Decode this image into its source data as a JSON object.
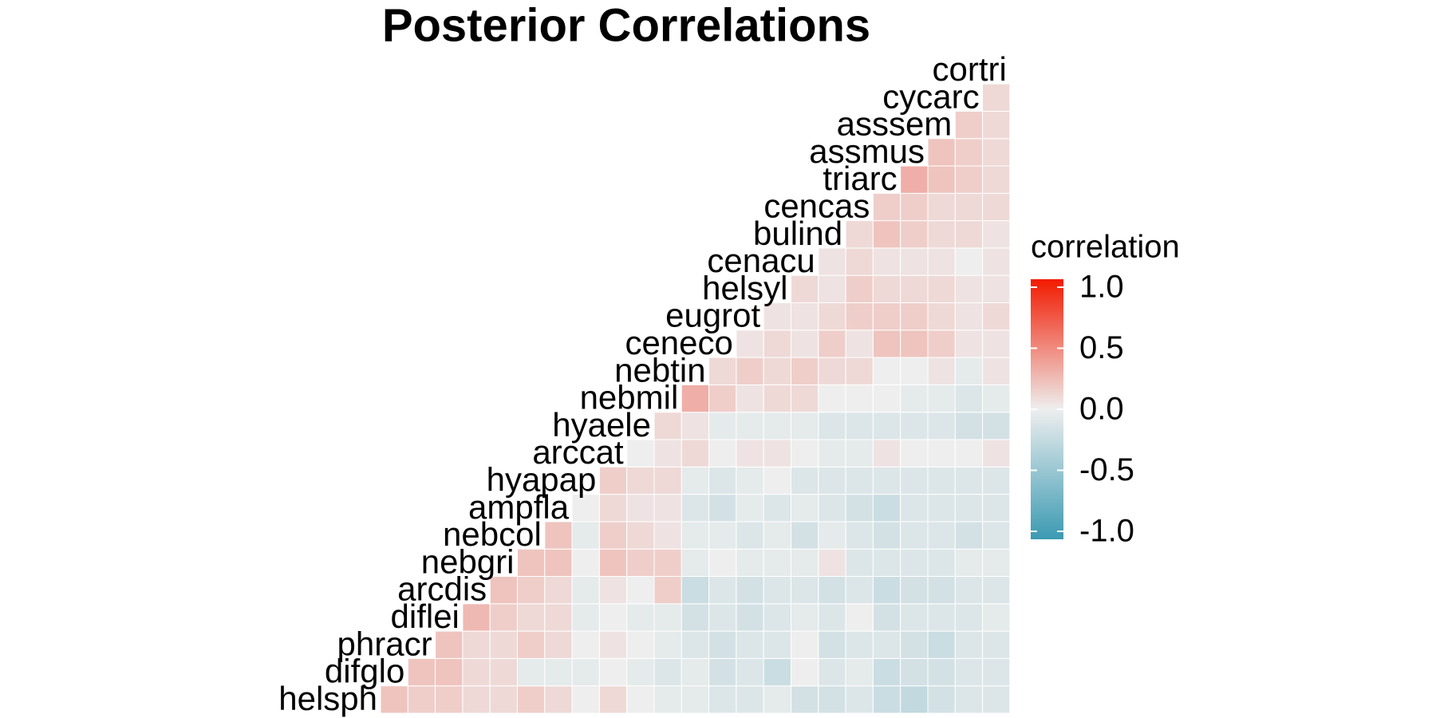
{
  "chart_data": {
    "type": "heatmap",
    "title": "Posterior Correlations",
    "variables": [
      "helsph",
      "difglo",
      "phracr",
      "diflei",
      "arcdis",
      "nebgri",
      "nebcol",
      "ampfla",
      "hyapap",
      "arccat",
      "hyaele",
      "nebmil",
      "nebtin",
      "ceneco",
      "eugrot",
      "helsyl",
      "cenacu",
      "bulind",
      "cencas",
      "triarc",
      "assmus",
      "asssem",
      "cycarc",
      "cortri"
    ],
    "values": [
      [
        0.2,
        0.15,
        0.15,
        0.1,
        0.1,
        0.15,
        0.1,
        0.0,
        0.1,
        0.0,
        -0.05,
        -0.05,
        -0.1,
        -0.1,
        -0.05,
        -0.15,
        -0.15,
        -0.1,
        -0.2,
        -0.25,
        -0.15,
        -0.1,
        -0.1
      ],
      [
        0.2,
        0.2,
        0.1,
        0.1,
        -0.05,
        -0.05,
        -0.05,
        0.0,
        -0.05,
        -0.1,
        -0.05,
        -0.15,
        -0.1,
        -0.2,
        0.0,
        -0.1,
        -0.05,
        -0.2,
        -0.15,
        -0.15,
        -0.1,
        -0.1
      ],
      [
        0.2,
        0.1,
        0.1,
        0.15,
        0.1,
        0.0,
        0.05,
        0.0,
        -0.05,
        -0.1,
        -0.15,
        -0.1,
        -0.1,
        0.0,
        -0.15,
        -0.1,
        -0.1,
        -0.15,
        -0.2,
        -0.1,
        -0.1
      ],
      [
        0.25,
        0.15,
        0.1,
        0.1,
        -0.05,
        0.0,
        -0.05,
        -0.05,
        -0.15,
        -0.1,
        -0.15,
        -0.1,
        -0.05,
        -0.1,
        0.0,
        -0.15,
        -0.1,
        -0.1,
        -0.1,
        -0.05
      ],
      [
        0.2,
        0.15,
        0.1,
        -0.05,
        0.05,
        0.0,
        0.15,
        -0.2,
        -0.1,
        -0.15,
        -0.1,
        -0.1,
        -0.15,
        -0.1,
        -0.2,
        -0.15,
        -0.15,
        -0.1,
        -0.1
      ],
      [
        0.2,
        0.2,
        0.0,
        0.2,
        0.15,
        0.15,
        -0.05,
        0.0,
        -0.05,
        -0.05,
        -0.05,
        0.05,
        -0.1,
        -0.1,
        -0.1,
        -0.1,
        -0.05,
        -0.05
      ],
      [
        0.2,
        -0.05,
        0.15,
        0.1,
        0.05,
        -0.05,
        -0.05,
        -0.1,
        -0.05,
        -0.15,
        -0.05,
        -0.1,
        -0.15,
        -0.1,
        -0.1,
        -0.15,
        -0.1
      ],
      [
        0.0,
        0.1,
        0.05,
        0.05,
        -0.1,
        -0.15,
        -0.05,
        -0.1,
        -0.05,
        -0.1,
        -0.15,
        -0.2,
        -0.1,
        -0.1,
        -0.1,
        -0.1
      ],
      [
        0.15,
        0.1,
        0.1,
        -0.05,
        -0.1,
        -0.05,
        0.0,
        -0.1,
        -0.1,
        -0.1,
        -0.1,
        -0.1,
        -0.1,
        -0.1,
        -0.1
      ],
      [
        0.0,
        0.05,
        0.1,
        0.0,
        0.05,
        0.05,
        0.0,
        -0.05,
        -0.05,
        0.05,
        0.0,
        0.0,
        0.0,
        0.05
      ],
      [
        0.1,
        0.05,
        -0.05,
        -0.05,
        -0.05,
        -0.05,
        -0.1,
        -0.1,
        -0.1,
        -0.1,
        -0.1,
        -0.15,
        -0.15
      ],
      [
        0.3,
        0.15,
        0.05,
        0.1,
        0.1,
        0.0,
        0.0,
        0.0,
        -0.05,
        -0.05,
        -0.1,
        -0.05
      ],
      [
        0.1,
        0.15,
        0.1,
        0.15,
        0.1,
        0.1,
        0.0,
        0.0,
        0.05,
        -0.05,
        0.05
      ],
      [
        0.05,
        0.1,
        0.05,
        0.15,
        0.05,
        0.2,
        0.2,
        0.15,
        0.05,
        0.05
      ],
      [
        0.05,
        0.05,
        0.1,
        0.15,
        0.15,
        0.15,
        0.1,
        0.05,
        0.1
      ],
      [
        0.1,
        0.05,
        0.15,
        0.1,
        0.1,
        0.1,
        0.05,
        0.05
      ],
      [
        0.05,
        0.1,
        0.05,
        0.05,
        0.05,
        0.0,
        0.05
      ],
      [
        0.1,
        0.2,
        0.15,
        0.1,
        0.1,
        0.05
      ],
      [
        0.15,
        0.15,
        0.1,
        0.1,
        0.1
      ],
      [
        0.3,
        0.2,
        0.15,
        0.1
      ],
      [
        0.2,
        0.15,
        0.1
      ],
      [
        0.15,
        0.1
      ],
      [
        0.1
      ]
    ],
    "legend_title": "correlation",
    "colors": {
      "low": "#3B9AB2",
      "mid": "#EEEEEE",
      "high": "#F21A00"
    },
    "clim": [
      -1,
      1
    ],
    "cticks": [
      {
        "value": 1,
        "label": "1.0"
      },
      {
        "value": 0.5,
        "label": "0.5"
      },
      {
        "value": 0,
        "label": "0.0"
      },
      {
        "value": -0.5,
        "label": "-0.5"
      },
      {
        "value": -1,
        "label": "-1.0"
      }
    ]
  }
}
